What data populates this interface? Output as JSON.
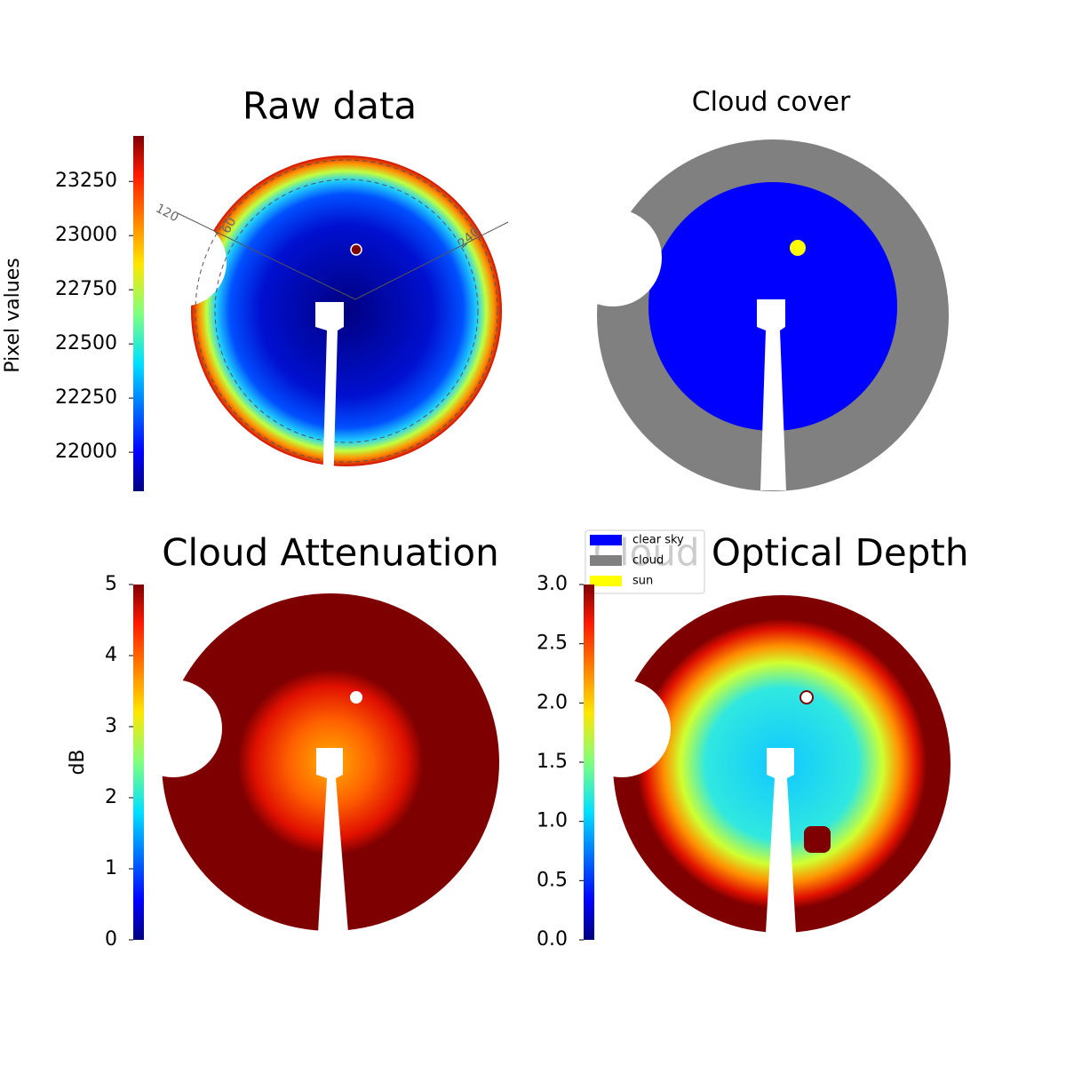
{
  "chart_data": [
    {
      "type": "heatmap",
      "title": "Raw data",
      "colorbar_label": "Pixel values",
      "colormap": "jet",
      "clim": [
        21820,
        23460
      ],
      "cticks": [
        22000,
        22250,
        22500,
        22750,
        23000,
        23250
      ],
      "annotations": [
        "120",
        "60",
        "240"
      ]
    },
    {
      "type": "classification",
      "title": "Cloud cover",
      "categories": [
        "clear sky",
        "cloud",
        "sun"
      ],
      "colors": [
        "#0000ff",
        "#808080",
        "#ffff00"
      ],
      "legend": "bottom left"
    },
    {
      "type": "heatmap",
      "title": "Cloud Attenuation",
      "colorbar_label": "dB",
      "colormap": "jet",
      "clim": [
        0,
        5
      ],
      "cticks": [
        0,
        1,
        2,
        3,
        4,
        5
      ]
    },
    {
      "type": "heatmap",
      "title": "Cloud Optical Depth",
      "colormap": "jet",
      "clim": [
        0,
        3
      ],
      "cticks": [
        {
          "value": 0,
          "label": "0.0"
        },
        {
          "value": 0.5,
          "label": "0.5"
        },
        {
          "value": 1,
          "label": "1.0"
        },
        {
          "value": 1.5,
          "label": "1.5"
        },
        {
          "value": 2,
          "label": "2.0"
        },
        {
          "value": 2.5,
          "label": "2.5"
        },
        {
          "value": 3,
          "label": "3.0"
        }
      ]
    }
  ]
}
